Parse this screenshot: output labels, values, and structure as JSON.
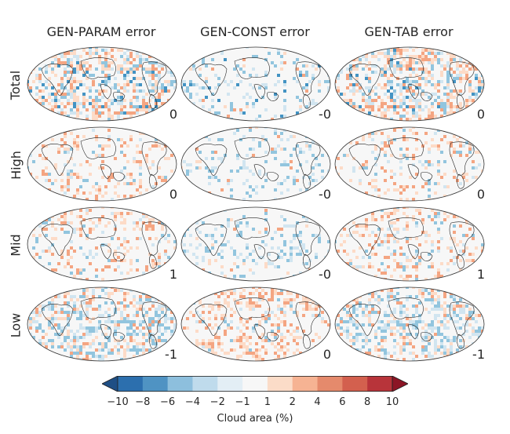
{
  "columns": [
    "GEN-PARAM error",
    "GEN-CONST error",
    "GEN-TAB error"
  ],
  "rows": [
    "Total",
    "High",
    "Mid",
    "Low"
  ],
  "panel_means": [
    [
      "0",
      "-0",
      "0"
    ],
    [
      "0",
      "-0",
      "0"
    ],
    [
      "1",
      "-0",
      "1"
    ],
    [
      "-1",
      "0",
      "-1"
    ]
  ],
  "colorbar": {
    "label": "Cloud area (%)",
    "ticks": [
      "−10",
      "−8",
      "−6",
      "−4",
      "−2",
      "−1",
      "1",
      "2",
      "4",
      "6",
      "8",
      "10"
    ],
    "colors": [
      "#2166ac",
      "#4393c3",
      "#92c5de",
      "#d1e5f0",
      "#f7f7f7",
      "#fddbc7",
      "#f4a582",
      "#d6604d",
      "#b2182b"
    ],
    "extend": "both"
  },
  "chart_data": {
    "type": "heatmap",
    "description": "4x3 grid of global map panels of cloud area error",
    "colorbar_range": [
      -10,
      10
    ],
    "colorbar_label": "Cloud area (%)",
    "panel_means": {
      "GEN-PARAM error": {
        "Total": 0,
        "High": 0,
        "Mid": 1,
        "Low": -1
      },
      "GEN-CONST error": {
        "Total": 0,
        "High": 0,
        "Mid": 0,
        "Low": 0
      },
      "GEN-TAB error": {
        "Total": 0,
        "High": 0,
        "Mid": 1,
        "Low": -1
      }
    }
  }
}
